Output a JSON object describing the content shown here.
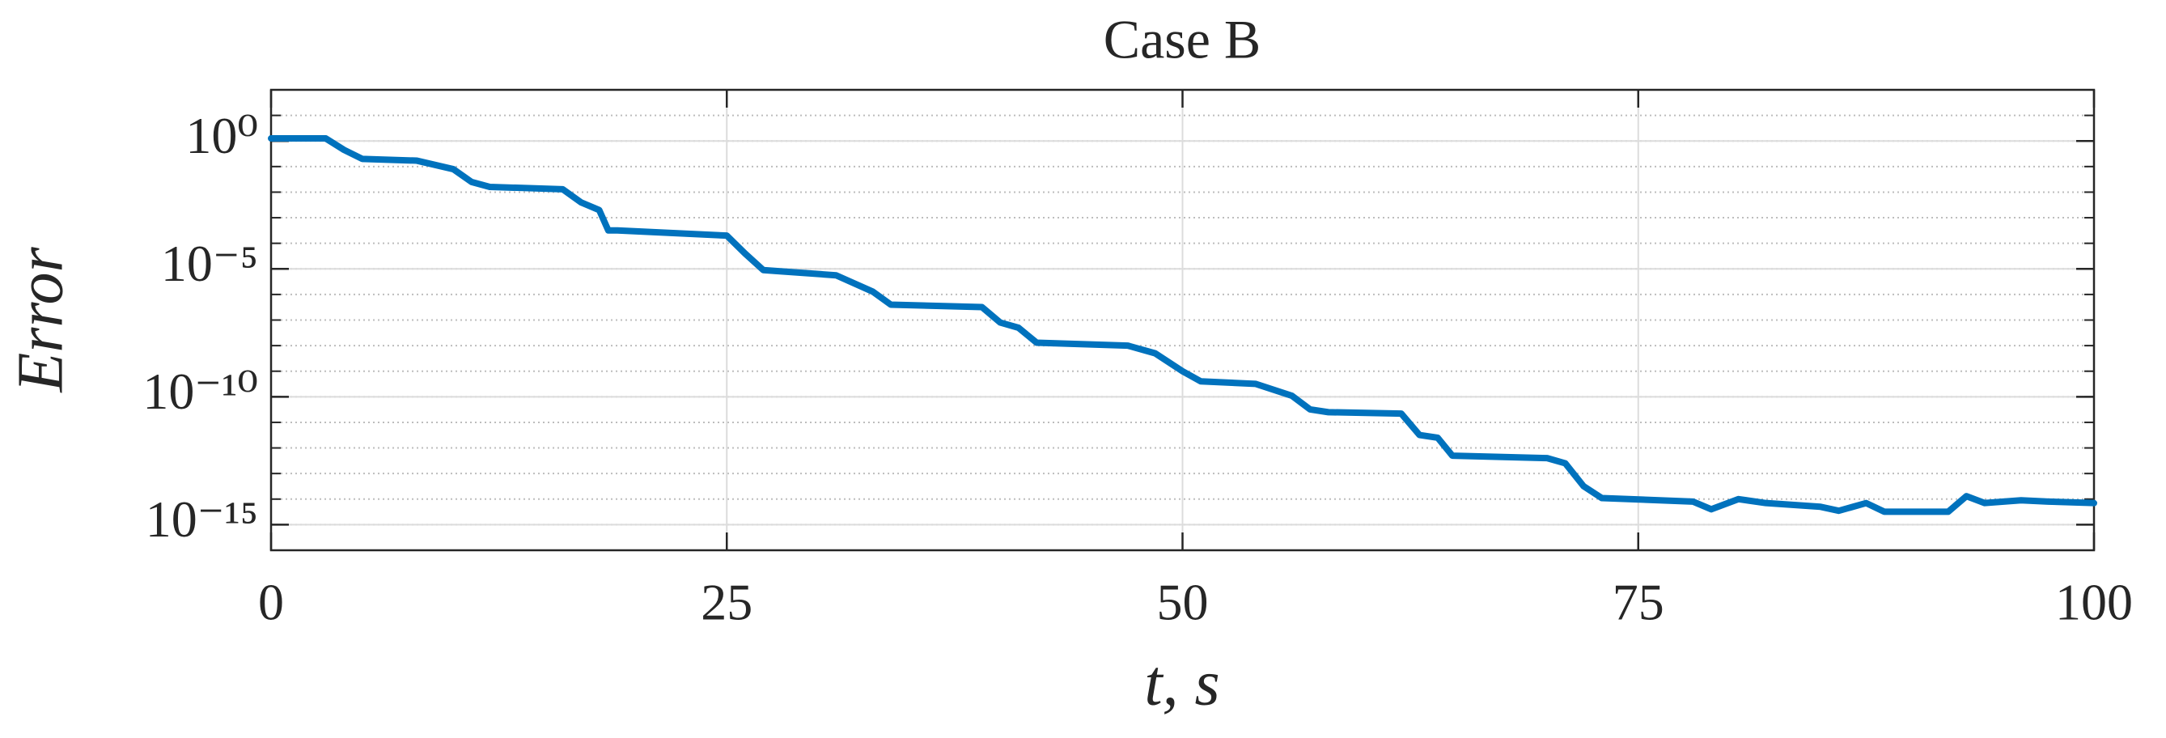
{
  "chart_data": {
    "type": "line",
    "title": "Case B",
    "xlabel": "t, s",
    "ylabel": "Error",
    "x": [
      0,
      3,
      4,
      5,
      8,
      10,
      11,
      12,
      16,
      17,
      18,
      18.5,
      19,
      25,
      26,
      27,
      28,
      31,
      33,
      34,
      39,
      40,
      41,
      42,
      47,
      48.5,
      50,
      51,
      54,
      56,
      57,
      58,
      62,
      63,
      64,
      64.8,
      70,
      71,
      72,
      73,
      78,
      79,
      80.5,
      82,
      85,
      86,
      87.5,
      88.5,
      92,
      93,
      94,
      96,
      97.5,
      100
    ],
    "series": [
      {
        "color": "#0072bd",
        "values": [
          1.26,
          1.26,
          0.45,
          0.2,
          0.17,
          0.079,
          0.025,
          0.016,
          0.013,
          0.004,
          0.002,
          0.00032,
          0.00032,
          0.0002,
          4e-05,
          9e-06,
          8e-06,
          5.6e-06,
          1.3e-06,
          4e-07,
          3.2e-07,
          8e-08,
          5e-08,
          1.3e-08,
          1e-08,
          5e-09,
          1e-09,
          4e-10,
          3.2e-10,
          1.1e-10,
          3.2e-11,
          2.5e-11,
          2.2e-11,
          3.2e-12,
          2.5e-12,
          5e-13,
          4e-13,
          2.5e-13,
          3.2e-14,
          1.1e-14,
          8e-15,
          4e-15,
          1e-14,
          7e-15,
          5e-15,
          3.5e-15,
          7e-15,
          3.2e-15,
          3.2e-15,
          1.3e-14,
          7e-15,
          9e-15,
          8e-15,
          7e-15
        ]
      }
    ],
    "xlim": [
      0,
      100
    ],
    "xticks": [
      0,
      25,
      50,
      75,
      100
    ],
    "yscale": "log",
    "ylim": [
      1e-16,
      100
    ],
    "yticks": [
      {
        "value": 1e-15,
        "label": "10⁻¹⁵"
      },
      {
        "value": 1e-10,
        "label": "10⁻¹⁰"
      },
      {
        "value": 1e-05,
        "label": "10⁻⁵"
      },
      {
        "value": 1,
        "label": "10⁰"
      }
    ],
    "grid": true,
    "minor_grid": true
  }
}
